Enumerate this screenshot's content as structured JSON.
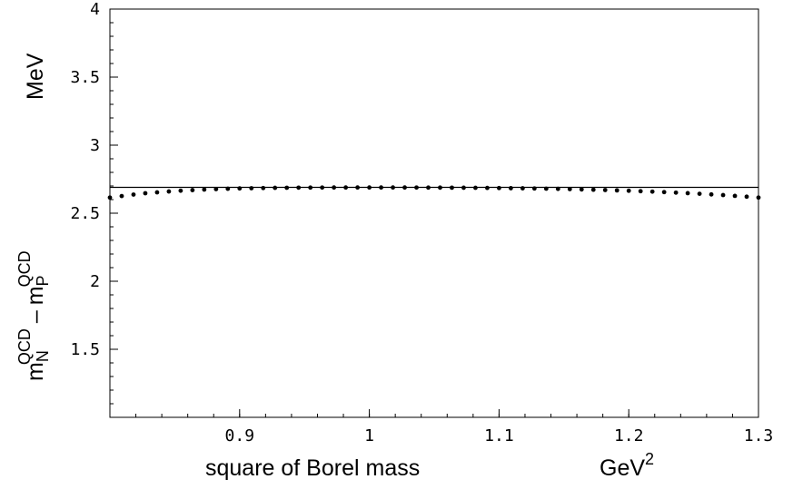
{
  "chart_data": {
    "type": "line",
    "title": "",
    "xlabel": "square of Borel mass",
    "xunit": "GeV",
    "xunit_exp": "2",
    "ylabel": {
      "m1": "m",
      "sub1": "N",
      "sup1": "QCD",
      "op": "–",
      "m2": "m",
      "sub2": "P",
      "sup2": "QCD"
    },
    "yunit": "MeV",
    "xlim": [
      0.8,
      1.3
    ],
    "ylim": [
      1.0,
      4.0
    ],
    "x_ticks": [
      0.9,
      1.0,
      1.1,
      1.2,
      1.3
    ],
    "x_tick_labels": [
      "0.9",
      "1",
      "1.1",
      "1.2",
      "1.3"
    ],
    "y_ticks": [
      1.5,
      2.0,
      2.5,
      3.0,
      3.5,
      4.0
    ],
    "y_tick_labels": [
      "1.5",
      "2",
      "2.5",
      "3",
      "3.5",
      "4"
    ],
    "grid": false,
    "series": [
      {
        "style": "solid",
        "color": "#000000",
        "x": [
          0.8,
          1.3
        ],
        "y": [
          2.69,
          2.69
        ]
      },
      {
        "style": "dotted",
        "color": "#000000",
        "x": [
          0.8,
          0.825,
          0.85,
          0.875,
          0.9,
          0.925,
          0.95,
          0.975,
          1.0,
          1.025,
          1.05,
          1.075,
          1.1,
          1.125,
          1.15,
          1.175,
          1.2,
          1.225,
          1.25,
          1.275,
          1.3
        ],
        "y": [
          2.615,
          2.645,
          2.663,
          2.675,
          2.682,
          2.686,
          2.688,
          2.689,
          2.689,
          2.689,
          2.688,
          2.687,
          2.685,
          2.682,
          2.678,
          2.672,
          2.665,
          2.656,
          2.645,
          2.632,
          2.615
        ]
      }
    ]
  }
}
